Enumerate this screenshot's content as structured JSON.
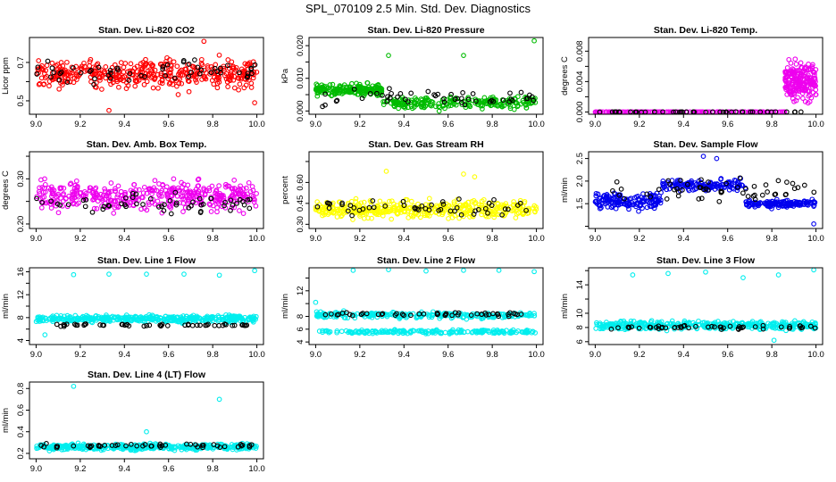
{
  "figure": {
    "title": "SPL_070109  2.5 Min. Std. Dev. Diagnostics",
    "colors": {
      "overlay": "#000000",
      "frame": "#000000"
    }
  },
  "chart_data": [
    {
      "type": "scatter",
      "title": "Stan. Dev. Li-820 CO2",
      "xlabel": "",
      "ylabel": "Licor ppm",
      "xlim": [
        8.97,
        10.03
      ],
      "ylim": [
        0.43,
        0.83
      ],
      "xticks": [
        "9.0",
        "9.2",
        "9.4",
        "9.6",
        "9.8",
        "10.0"
      ],
      "yticks": [
        0.5,
        0.6,
        0.7
      ],
      "ytick_labels": [
        "0.5",
        "",
        "0.7"
      ],
      "color": "#ff0000",
      "series": [
        {
          "name": "Li-820 CO2",
          "color": "#ff0000",
          "base": 0.64,
          "spread": 0.07,
          "count": 420
        },
        {
          "name": "overlay",
          "color": "#000000",
          "base": 0.65,
          "spread": 0.05,
          "count": 55
        }
      ],
      "outliers": [
        {
          "x": 9.33,
          "y": 0.45
        },
        {
          "x": 9.76,
          "y": 0.81
        },
        {
          "x": 9.99,
          "y": 0.49
        }
      ]
    },
    {
      "type": "scatter",
      "title": "Stan. Dev. Li-820 Pressure",
      "xlabel": "",
      "ylabel": "kPa",
      "xlim": [
        8.97,
        10.03
      ],
      "ylim": [
        -0.001,
        0.0225
      ],
      "xticks": [
        "9.0",
        "9.2",
        "9.4",
        "9.6",
        "9.8",
        "10.0"
      ],
      "yticks": [
        0.0,
        0.005,
        0.01,
        0.015,
        0.02
      ],
      "ytick_labels": [
        "0.000",
        "",
        "0.010",
        "",
        "0.020"
      ],
      "color": "#00bb00",
      "series": [
        {
          "name": "Li-820 Pressure",
          "color": "#00bb00",
          "segments": [
            {
              "x0": 9.0,
              "x1": 9.3,
              "base": 0.0065,
              "spread": 0.0015
            },
            {
              "x0": 9.3,
              "x1": 10.0,
              "base": 0.0025,
              "spread": 0.0018
            }
          ],
          "count": 420
        },
        {
          "name": "overlay",
          "color": "#000000",
          "base": 0.004,
          "spread": 0.0025,
          "count": 50
        }
      ],
      "outliers": [
        {
          "x": 9.33,
          "y": 0.017
        },
        {
          "x": 9.67,
          "y": 0.017
        },
        {
          "x": 9.99,
          "y": 0.0215
        }
      ]
    },
    {
      "type": "scatter",
      "title": "Stan. Dev. Li-820 Temp.",
      "xlabel": "",
      "ylabel": "degrees C",
      "xlim": [
        8.97,
        10.03
      ],
      "ylim": [
        -0.0003,
        0.0098
      ],
      "xticks": [
        "9.0",
        "9.2",
        "9.4",
        "9.6",
        "9.8",
        "10.0"
      ],
      "yticks": [
        0.0,
        0.002,
        0.004,
        0.006,
        0.008
      ],
      "ytick_labels": [
        "0.000",
        "",
        "0.004",
        "",
        "0.008"
      ],
      "color": "#ee00ee",
      "series": [
        {
          "name": "Li-820 Temp.",
          "color": "#ee00ee",
          "segments": [
            {
              "x0": 9.0,
              "x1": 9.86,
              "base": 0.0,
              "spread": 2e-05
            },
            {
              "x0": 9.86,
              "x1": 10.0,
              "base": 0.004,
              "spread": 0.0022
            }
          ],
          "count": 380
        },
        {
          "name": "overlay",
          "color": "#000000",
          "base": 0.0,
          "spread": 2e-05,
          "count": 45
        }
      ],
      "outliers": []
    },
    {
      "type": "scatter",
      "title": "Stan. Dev. Amb. Box Temp.",
      "xlabel": "",
      "ylabel": "degrees C",
      "xlim": [
        8.97,
        10.03
      ],
      "ylim": [
        0.19,
        0.36
      ],
      "xticks": [
        "9.0",
        "9.2",
        "9.4",
        "9.6",
        "9.8",
        "10.0"
      ],
      "yticks": [
        0.2,
        0.25,
        0.3,
        0.35
      ],
      "ytick_labels": [
        "0.20",
        "",
        "0.30",
        ""
      ],
      "color": "#ee00ee",
      "series": [
        {
          "name": "Amb. Box Temp.",
          "color": "#ee00ee",
          "base": 0.262,
          "spread": 0.03,
          "count": 420
        },
        {
          "name": "overlay",
          "color": "#000000",
          "base": 0.245,
          "spread": 0.02,
          "count": 55
        }
      ],
      "outliers": []
    },
    {
      "type": "scatter",
      "title": "Stan. Dev. Gas Stream RH",
      "xlabel": "",
      "ylabel": "percent",
      "xlim": [
        8.97,
        10.03
      ],
      "ylim": [
        0.27,
        0.82
      ],
      "xticks": [
        "9.0",
        "9.2",
        "9.4",
        "9.6",
        "9.8",
        "10.0"
      ],
      "yticks": [
        0.3,
        0.45,
        0.6,
        0.75
      ],
      "ytick_labels": [
        "0.30",
        "0.45",
        "0.60",
        ""
      ],
      "color": "#ffff00",
      "series": [
        {
          "name": "Gas Stream RH",
          "color": "#ffff00",
          "base": 0.41,
          "spread": 0.055,
          "count": 420
        },
        {
          "name": "overlay",
          "color": "#000000",
          "base": 0.42,
          "spread": 0.05,
          "count": 50
        }
      ],
      "outliers": [
        {
          "x": 9.32,
          "y": 0.68
        },
        {
          "x": 9.67,
          "y": 0.66
        },
        {
          "x": 9.72,
          "y": 0.64
        }
      ]
    },
    {
      "type": "scatter",
      "title": "Stan. Dev. Sample Flow",
      "xlabel": "",
      "ylabel": "ml/min",
      "xlim": [
        8.97,
        10.03
      ],
      "ylim": [
        0.95,
        2.65
      ],
      "xticks": [
        "9.0",
        "9.2",
        "9.4",
        "9.6",
        "9.8",
        "10.0"
      ],
      "yticks": [
        1.0,
        1.5,
        2.0,
        2.5
      ],
      "ytick_labels": [
        "",
        "1.5",
        "2.0",
        "2.5"
      ],
      "color": "#0000ee",
      "series": [
        {
          "name": "Sample Flow",
          "color": "#0000ee",
          "segments": [
            {
              "x0": 9.0,
              "x1": 9.3,
              "base": 1.55,
              "spread": 0.15
            },
            {
              "x0": 9.3,
              "x1": 9.68,
              "base": 1.9,
              "spread": 0.12
            },
            {
              "x0": 9.68,
              "x1": 10.0,
              "base": 1.5,
              "spread": 0.08
            }
          ],
          "count": 420
        },
        {
          "name": "overlay",
          "color": "#000000",
          "base": 1.8,
          "spread": 0.22,
          "count": 55
        }
      ],
      "outliers": [
        {
          "x": 9.49,
          "y": 2.55
        },
        {
          "x": 9.55,
          "y": 2.5
        },
        {
          "x": 9.99,
          "y": 1.05
        }
      ]
    },
    {
      "type": "scatter",
      "title": "Stan. Dev. Line 1 Flow",
      "xlabel": "",
      "ylabel": "ml/min",
      "xlim": [
        8.97,
        10.03
      ],
      "ylim": [
        3.3,
        16.7
      ],
      "xticks": [
        "9.0",
        "9.2",
        "9.4",
        "9.6",
        "9.8",
        "10.0"
      ],
      "yticks": [
        4,
        6,
        8,
        10,
        12,
        14,
        16
      ],
      "ytick_labels": [
        "4",
        "",
        "8",
        "",
        "12",
        "",
        "16"
      ],
      "color": "#00eeee",
      "series": [
        {
          "name": "Line 1 Flow",
          "color": "#00eeee",
          "base": 7.8,
          "spread": 0.55,
          "count": 420
        },
        {
          "name": "overlay",
          "color": "#000000",
          "base": 6.7,
          "spread": 0.2,
          "count": 50
        }
      ],
      "outliers": [
        {
          "x": 9.17,
          "y": 15.5
        },
        {
          "x": 9.33,
          "y": 15.6
        },
        {
          "x": 9.5,
          "y": 15.6
        },
        {
          "x": 9.67,
          "y": 15.6
        },
        {
          "x": 9.83,
          "y": 15.4
        },
        {
          "x": 9.99,
          "y": 16.2
        },
        {
          "x": 9.04,
          "y": 5.0
        }
      ]
    },
    {
      "type": "scatter",
      "title": "Stan. Dev. Line 2 Flow",
      "xlabel": "",
      "ylabel": "ml/min",
      "xlim": [
        8.97,
        10.03
      ],
      "ylim": [
        3.6,
        15.6
      ],
      "xticks": [
        "9.0",
        "9.2",
        "9.4",
        "9.6",
        "9.8",
        "10.0"
      ],
      "yticks": [
        4,
        6,
        8,
        10,
        12,
        14
      ],
      "ytick_labels": [
        "4",
        "6",
        "8",
        "",
        "12",
        ""
      ],
      "color": "#00eeee",
      "series": [
        {
          "name": "Line 2 Flow upper",
          "color": "#00eeee",
          "base": 8.2,
          "spread": 0.45,
          "count": 260
        },
        {
          "name": "Line 2 Flow lower",
          "color": "#00eeee",
          "base": 5.6,
          "spread": 0.25,
          "count": 200
        },
        {
          "name": "overlay",
          "color": "#000000",
          "base": 8.3,
          "spread": 0.3,
          "count": 50
        }
      ],
      "outliers": [
        {
          "x": 9.17,
          "y": 15.2
        },
        {
          "x": 9.33,
          "y": 15.3
        },
        {
          "x": 9.5,
          "y": 15.1
        },
        {
          "x": 9.67,
          "y": 15.2
        },
        {
          "x": 9.83,
          "y": 15.2
        },
        {
          "x": 9.99,
          "y": 15.0
        },
        {
          "x": 9.0,
          "y": 10.2
        }
      ]
    },
    {
      "type": "scatter",
      "title": "Stan. Dev. Line 3 Flow",
      "xlabel": "",
      "ylabel": "ml/min",
      "xlim": [
        8.97,
        10.03
      ],
      "ylim": [
        5.6,
        16.4
      ],
      "xticks": [
        "9.0",
        "9.2",
        "9.4",
        "9.6",
        "9.8",
        "10.0"
      ],
      "yticks": [
        6,
        8,
        10,
        12,
        14,
        16
      ],
      "ytick_labels": [
        "6",
        "8",
        "10",
        "",
        "14",
        ""
      ],
      "color": "#00eeee",
      "series": [
        {
          "name": "Line 3 Flow",
          "color": "#00eeee",
          "base": 8.3,
          "spread": 0.55,
          "count": 420
        },
        {
          "name": "overlay",
          "color": "#000000",
          "base": 8.0,
          "spread": 0.25,
          "count": 50
        }
      ],
      "outliers": [
        {
          "x": 9.17,
          "y": 15.4
        },
        {
          "x": 9.33,
          "y": 15.6
        },
        {
          "x": 9.5,
          "y": 15.8
        },
        {
          "x": 9.67,
          "y": 15.0
        },
        {
          "x": 9.83,
          "y": 15.4
        },
        {
          "x": 9.99,
          "y": 16.1
        },
        {
          "x": 9.81,
          "y": 6.2
        }
      ]
    },
    {
      "type": "scatter",
      "title": "Stan. Dev. Line 4 (LT) Flow",
      "xlabel": "",
      "ylabel": "ml/min",
      "xlim": [
        8.97,
        10.03
      ],
      "ylim": [
        0.15,
        0.86
      ],
      "xticks": [
        "9.0",
        "9.2",
        "9.4",
        "9.6",
        "9.8",
        "10.0"
      ],
      "yticks": [
        0.2,
        0.4,
        0.6,
        0.8
      ],
      "ytick_labels": [
        "0.2",
        "0.4",
        "0.6",
        "0.8"
      ],
      "color": "#00eeee",
      "series": [
        {
          "name": "Line 4 (LT) Flow",
          "color": "#00eeee",
          "base": 0.26,
          "spread": 0.025,
          "count": 420
        },
        {
          "name": "overlay",
          "color": "#000000",
          "base": 0.27,
          "spread": 0.02,
          "count": 50
        }
      ],
      "outliers": [
        {
          "x": 9.17,
          "y": 0.82
        },
        {
          "x": 9.83,
          "y": 0.7
        },
        {
          "x": 9.5,
          "y": 0.4
        }
      ]
    }
  ]
}
